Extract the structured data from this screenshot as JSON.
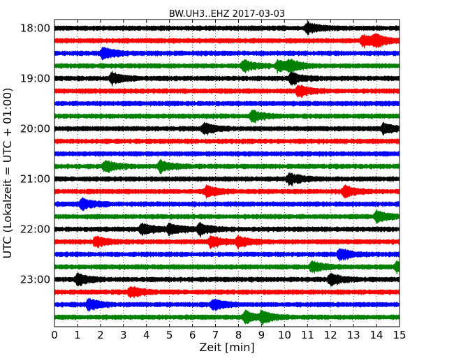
{
  "chart_data": {
    "type": "line",
    "subtype": "helicorder-seismogram",
    "title": "BW.UH3..EHZ 2017-03-03",
    "xlabel": "Zeit  [min]",
    "ylabel": "UTC (Lokalzeit = UTC + 01:00)",
    "xlim": [
      0,
      15
    ],
    "x_ticks": [
      "0",
      "1",
      "2",
      "3",
      "4",
      "5",
      "6",
      "7",
      "8",
      "9",
      "10",
      "11",
      "12",
      "13",
      "14",
      "15"
    ],
    "y_ticks": [
      "18:00",
      "19:00",
      "20:00",
      "21:00",
      "22:00",
      "23:00"
    ],
    "grid": "vertical dotted at each minute",
    "trace_colors": [
      "#000000",
      "#ff0000",
      "#0000ff",
      "#008000"
    ],
    "trace_interval_min": 15,
    "traces": [
      {
        "start": "18:00",
        "events_min": [
          11.0
        ]
      },
      {
        "start": "18:15",
        "events_min": [
          13.4,
          13.9
        ]
      },
      {
        "start": "18:30",
        "events_min": [
          2.1
        ]
      },
      {
        "start": "18:45",
        "events_min": [
          8.2,
          9.7,
          10.2
        ]
      },
      {
        "start": "19:00",
        "events_min": [
          2.5,
          10.3
        ]
      },
      {
        "start": "19:15",
        "events_min": [
          10.6
        ]
      },
      {
        "start": "19:30",
        "events_min": []
      },
      {
        "start": "19:45",
        "events_min": [
          8.6
        ]
      },
      {
        "start": "20:00",
        "events_min": [
          6.5,
          14.3
        ]
      },
      {
        "start": "20:15",
        "events_min": []
      },
      {
        "start": "20:30",
        "events_min": []
      },
      {
        "start": "20:45",
        "events_min": [
          2.2,
          4.6
        ]
      },
      {
        "start": "21:00",
        "events_min": [
          10.2
        ]
      },
      {
        "start": "21:15",
        "events_min": [
          6.6,
          12.6
        ]
      },
      {
        "start": "21:30",
        "events_min": [
          1.2
        ]
      },
      {
        "start": "21:45",
        "events_min": [
          14.0
        ]
      },
      {
        "start": "22:00",
        "events_min": [
          3.8,
          5.0,
          6.3
        ]
      },
      {
        "start": "22:15",
        "events_min": [
          1.8,
          6.8,
          8.0
        ]
      },
      {
        "start": "22:30",
        "events_min": [
          12.4
        ]
      },
      {
        "start": "22:45",
        "events_min": [
          11.2,
          14.9
        ]
      },
      {
        "start": "23:00",
        "events_min": [
          1.0,
          12.0
        ]
      },
      {
        "start": "23:15",
        "events_min": [
          3.3
        ]
      },
      {
        "start": "23:30",
        "events_min": [
          1.5,
          6.9
        ]
      },
      {
        "start": "23:45",
        "events_min": [
          8.3,
          9.0
        ]
      }
    ]
  }
}
